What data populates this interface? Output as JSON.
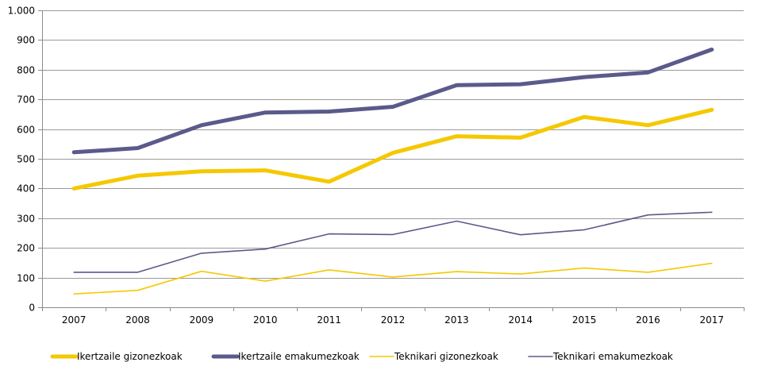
{
  "chart_data": {
    "type": "line",
    "title": "",
    "xlabel": "",
    "ylabel": "",
    "categories": [
      "2007",
      "2008",
      "2009",
      "2010",
      "2011",
      "2012",
      "2013",
      "2014",
      "2015",
      "2016",
      "2017"
    ],
    "ylim": [
      0,
      1000
    ],
    "yticks": [
      0,
      100,
      200,
      300,
      400,
      500,
      600,
      700,
      800,
      900,
      1000
    ],
    "ytick_labels": [
      "0",
      "100",
      "200",
      "300",
      "400",
      "500",
      "600",
      "700",
      "800",
      "900",
      "1.000"
    ],
    "grid": true,
    "legend_position": "bottom",
    "series": [
      {
        "name": "Ikertzaile gizonezkoak",
        "color": "#F5C800",
        "weight": "thick",
        "values": [
          400,
          443,
          458,
          461,
          423,
          520,
          576,
          571,
          641,
          613,
          665
        ]
      },
      {
        "name": "Ikertzaile emakumezkoak",
        "color": "#5A5A8C",
        "weight": "thick",
        "values": [
          522,
          536,
          613,
          656,
          659,
          675,
          748,
          751,
          775,
          791,
          868
        ]
      },
      {
        "name": "Teknikari gizonezkoak",
        "color": "#F5C800",
        "weight": "thin",
        "values": [
          45,
          57,
          121,
          88,
          126,
          102,
          120,
          112,
          132,
          118,
          148
        ]
      },
      {
        "name": "Teknikari emakumezkoak",
        "color": "#5A5A8C",
        "weight": "thin",
        "values": [
          118,
          118,
          182,
          196,
          247,
          245,
          290,
          244,
          261,
          311,
          320
        ]
      }
    ]
  }
}
